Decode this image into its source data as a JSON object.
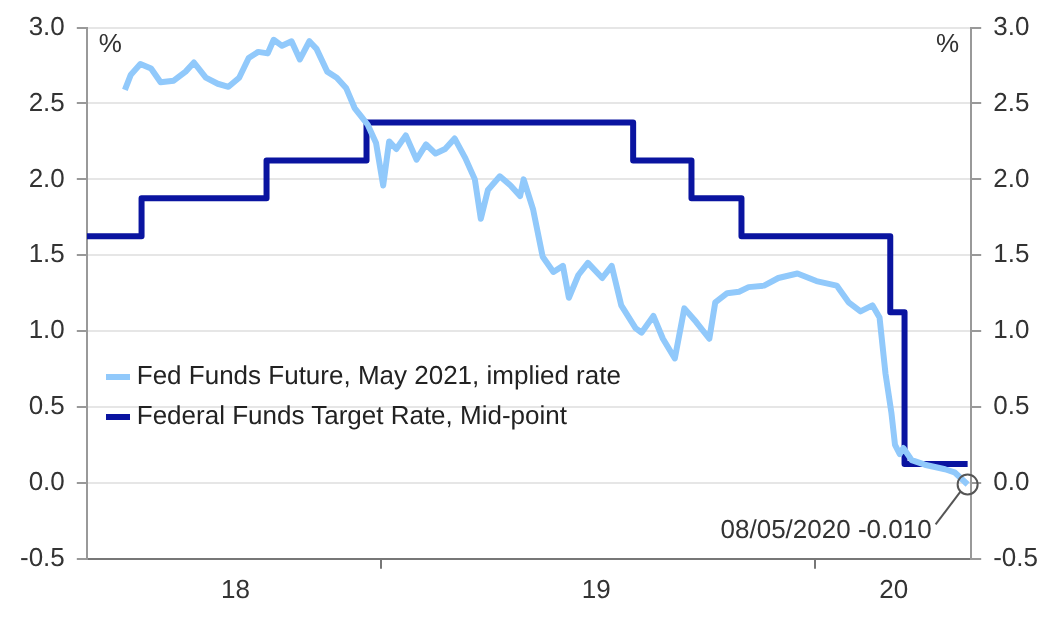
{
  "chart_data": {
    "type": "line",
    "ylabel": "%",
    "y2label": "%",
    "xlim": [
      "2018-04-29",
      "2020-05-11"
    ],
    "xticks": [
      {
        "value": "2018-09-01",
        "label": "18"
      },
      {
        "value": "2019-01-01",
        "label": null
      },
      {
        "value": "2019-07-01",
        "label": "19"
      },
      {
        "value": "2020-01-01",
        "label": null
      },
      {
        "value": "2020-03-07",
        "label": "20"
      }
    ],
    "ylim": [
      -0.5,
      3.0
    ],
    "yticks": [
      {
        "value": -0.5,
        "label": "-0.5"
      },
      {
        "value": 0,
        "label": "0.0"
      },
      {
        "value": 0.5,
        "label": "0.5"
      },
      {
        "value": 1,
        "label": "1.0"
      },
      {
        "value": 1.5,
        "label": "1.5"
      },
      {
        "value": 2,
        "label": "2.0"
      },
      {
        "value": 2.5,
        "label": "2.5"
      },
      {
        "value": 3,
        "label": "3.0"
      }
    ],
    "y2lim": [
      -0.5,
      3.0
    ],
    "y2ticks": [
      {
        "value": -0.5,
        "label": "-0.5"
      },
      {
        "value": 0,
        "label": "0.0"
      },
      {
        "value": 0.5,
        "label": "0.5"
      },
      {
        "value": 1,
        "label": "1.0"
      },
      {
        "value": 1.5,
        "label": "1.5"
      },
      {
        "value": 2,
        "label": "2.0"
      },
      {
        "value": 2.5,
        "label": "2.5"
      },
      {
        "value": 3,
        "label": "3.0"
      }
    ],
    "grid": "y",
    "legend": "left",
    "line_style": "solid",
    "marker": "none",
    "annotations": [
      {
        "text": "08/05/2020 -0.010",
        "x": "2020-05-08",
        "y": -0.01
      }
    ],
    "series": [
      {
        "name": "Fed Funds Future, May 2021, implied rate",
        "color": "#91c9fb",
        "type": "line",
        "x": [
          "2018-05-31",
          "2018-06-05",
          "2018-06-13",
          "2018-06-22",
          "2018-06-30",
          "2018-07-11",
          "2018-07-21",
          "2018-07-28",
          "2018-08-07",
          "2018-08-17",
          "2018-08-26",
          "2018-09-04",
          "2018-09-12",
          "2018-09-20",
          "2018-09-28",
          "2018-10-03",
          "2018-10-10",
          "2018-10-18",
          "2018-10-25",
          "2018-11-02",
          "2018-11-08",
          "2018-11-17",
          "2018-11-25",
          "2018-12-03",
          "2018-12-10",
          "2018-12-16",
          "2018-12-21",
          "2018-12-28",
          "2019-01-03",
          "2019-01-08",
          "2019-01-14",
          "2019-01-22",
          "2019-01-31",
          "2019-02-08",
          "2019-02-16",
          "2019-02-24",
          "2019-03-04",
          "2019-03-13",
          "2019-03-21",
          "2019-03-26",
          "2019-04-01",
          "2019-04-11",
          "2019-04-20",
          "2019-04-28",
          "2019-05-01",
          "2019-05-09",
          "2019-05-17",
          "2019-05-26",
          "2019-06-03",
          "2019-06-08",
          "2019-06-16",
          "2019-06-24",
          "2019-07-06",
          "2019-07-14",
          "2019-07-22",
          "2019-08-03",
          "2019-08-08",
          "2019-08-18",
          "2019-08-26",
          "2019-09-05",
          "2019-09-13",
          "2019-09-23",
          "2019-10-04",
          "2019-10-09",
          "2019-10-19",
          "2019-10-29",
          "2019-11-06",
          "2019-11-19",
          "2019-12-01",
          "2019-12-17",
          "2020-01-02",
          "2020-01-19",
          "2020-01-29",
          "2020-02-08",
          "2020-02-18",
          "2020-02-24",
          "2020-02-29",
          "2020-03-05",
          "2020-03-08",
          "2020-03-12",
          "2020-03-15",
          "2020-03-22",
          "2020-04-02",
          "2020-04-19",
          "2020-04-27",
          "2020-05-08"
        ],
        "values": [
          2.59,
          2.69,
          2.76,
          2.73,
          2.64,
          2.65,
          2.71,
          2.77,
          2.67,
          2.63,
          2.61,
          2.67,
          2.8,
          2.84,
          2.83,
          2.92,
          2.88,
          2.91,
          2.79,
          2.91,
          2.86,
          2.71,
          2.67,
          2.6,
          2.47,
          2.41,
          2.36,
          2.24,
          1.96,
          2.25,
          2.2,
          2.29,
          2.13,
          2.23,
          2.17,
          2.2,
          2.27,
          2.14,
          2.0,
          1.74,
          1.93,
          2.02,
          1.96,
          1.89,
          2.0,
          1.8,
          1.49,
          1.39,
          1.43,
          1.22,
          1.37,
          1.45,
          1.35,
          1.43,
          1.17,
          1.02,
          0.99,
          1.1,
          0.95,
          0.82,
          1.15,
          1.06,
          0.95,
          1.19,
          1.25,
          1.26,
          1.29,
          1.3,
          1.35,
          1.38,
          1.33,
          1.3,
          1.19,
          1.13,
          1.17,
          1.09,
          0.72,
          0.46,
          0.25,
          0.19,
          0.23,
          0.15,
          0.12,
          0.09,
          0.07,
          -0.01
        ]
      },
      {
        "name": "Federal Funds Target Rate, Mid-point",
        "color": "#0a14a0",
        "type": "step",
        "x": [
          "2018-04-29",
          "2018-06-14",
          "2018-09-27",
          "2018-12-20",
          "2019-08-01",
          "2019-09-19",
          "2019-10-31",
          "2020-03-04",
          "2020-03-16",
          "2020-05-08"
        ],
        "values": [
          1.625,
          1.875,
          2.125,
          2.375,
          2.125,
          1.875,
          1.625,
          1.125,
          0.125,
          0.125
        ]
      }
    ]
  }
}
